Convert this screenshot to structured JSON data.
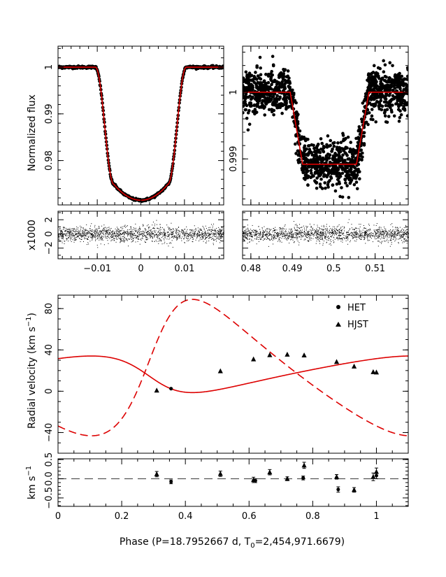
{
  "chart_data": [
    {
      "type": "line+scatter",
      "panel": "primary-transit",
      "ylabel": "Normalized flux",
      "xlim": [
        -0.019,
        0.019
      ],
      "ylim": [
        0.9705,
        1.0045
      ],
      "xticks": [
        -0.01,
        0,
        0.01
      ],
      "yticks": [
        1,
        0.99,
        0.98
      ],
      "ytick_labels": [
        "1",
        "0.99",
        "0.98"
      ],
      "model": {
        "baseline": 1.0,
        "depth": 0.0285,
        "t1": 0.0104,
        "t2": 0.0062,
        "color": "#dd0000"
      },
      "data_points_approx": 420
    },
    {
      "type": "line+scatter",
      "panel": "secondary-eclipse",
      "xlim": [
        0.478,
        0.518
      ],
      "ylim": [
        0.99831,
        1.00069
      ],
      "yticks": [
        1,
        0.999
      ],
      "ytick_labels": [
        "1",
        "0.999"
      ],
      "model": {
        "baseline": 1.0,
        "depth": 0.00108,
        "ingress_start": 0.4895,
        "ingress_end": 0.4925,
        "egress_start": 0.5055,
        "egress_end": 0.5085,
        "color": "#dd0000"
      },
      "data_points_approx": 1400
    },
    {
      "type": "scatter",
      "panel": "primary-residuals",
      "ylabel": "x1000",
      "xlim": [
        -0.019,
        0.019
      ],
      "ylim": [
        -3.5,
        3.2
      ],
      "xticks": [
        -0.01,
        0,
        0.01
      ],
      "xtick_labels": [
        "−0.01",
        "0",
        "0.01"
      ],
      "yticks": [
        2,
        0,
        -2
      ],
      "ytick_labels": [
        "2",
        "0",
        "−2"
      ]
    },
    {
      "type": "scatter",
      "panel": "secondary-residuals",
      "xlim": [
        0.478,
        0.518
      ],
      "ylim": [
        -3.5,
        3.2
      ],
      "xticks": [
        0.48,
        0.49,
        0.5,
        0.51
      ],
      "xtick_labels": [
        "0.48",
        "0.49",
        "0.5",
        "0.51"
      ]
    },
    {
      "type": "line+scatter",
      "panel": "radial-velocity",
      "ylabel": "Radial velocity (km s⁻¹)",
      "xlim": [
        0,
        1.1
      ],
      "ylim": [
        -60,
        93
      ],
      "yticks": [
        80,
        40,
        0,
        -40
      ],
      "ytick_labels": [
        "80",
        "40",
        "0",
        "−40"
      ],
      "legend": [
        {
          "marker": "circle",
          "label": "HET"
        },
        {
          "marker": "triangle",
          "label": "HJST"
        }
      ],
      "model_primary": {
        "gamma": 17.76,
        "K": 17.7,
        "e": 0.3,
        "omega_deg": 105,
        "t_peri_phase": 0.3,
        "color": "#dd0000",
        "style": "solid"
      },
      "model_secondary": {
        "gamma": 17.76,
        "K": 66.0,
        "e": 0.3,
        "omega_deg": 285,
        "t_peri_phase": 0.3,
        "color": "#dd0000",
        "style": "dashed"
      },
      "series": [
        {
          "name": "HET",
          "marker": "circle",
          "x": [
            0.355
          ],
          "y": [
            2.5
          ]
        },
        {
          "name": "HJST",
          "marker": "triangle",
          "x": [
            0.31,
            0.51,
            0.614,
            0.665,
            0.72,
            0.773,
            0.875,
            0.93,
            0.99,
            1.0
          ],
          "y": [
            0.8,
            19.5,
            31.0,
            35.0,
            35.5,
            34.8,
            28.4,
            24.0,
            18.6,
            18.3
          ]
        }
      ]
    },
    {
      "type": "scatter",
      "panel": "rv-residuals",
      "ylabel": "km s⁻¹",
      "xlabel": "Phase (P=18.7952667 d, T₀=2,454,971.6679)",
      "xlim": [
        0,
        1.1
      ],
      "ylim": [
        -0.72,
        0.52
      ],
      "xticks": [
        0,
        0.2,
        0.4,
        0.6,
        0.8,
        1
      ],
      "xtick_labels": [
        "0",
        "0.2",
        "0.4",
        "0.6",
        "0.8",
        "1"
      ],
      "yticks": [
        0.5,
        0,
        -0.5
      ],
      "ytick_labels": [
        "0.5",
        "0.0",
        "−0.5"
      ],
      "zero_line": {
        "y": 0,
        "style": "dashed",
        "color": "#555555"
      },
      "series": [
        {
          "name": "HET",
          "marker": "circle",
          "x": [
            0.355
          ],
          "y": [
            -0.08
          ],
          "err": [
            0.05
          ]
        },
        {
          "name": "HJST",
          "marker": "triangle",
          "x": [
            0.31,
            0.51,
            0.614,
            0.665,
            0.72,
            0.773,
            0.875,
            0.93,
            0.99,
            1.0
          ],
          "y": [
            0.12,
            0.13,
            -0.03,
            0.17,
            0.0,
            0.35,
            0.05,
            -0.29,
            0.05,
            0.18
          ],
          "err": [
            0.07,
            0.07,
            0.07,
            0.07,
            0.05,
            0.08,
            0.06,
            0.06,
            0.1,
            0.1
          ]
        },
        {
          "name": "extra",
          "marker": "circle",
          "x": [
            0.62,
            0.77,
            0.88,
            1.0
          ],
          "y": [
            -0.05,
            0.02,
            -0.28,
            0.08
          ],
          "err": [
            0.05,
            0.05,
            0.07,
            0.08
          ]
        }
      ]
    }
  ],
  "labels": {
    "flux_ylabel": "Normalized flux",
    "resid_ylabel": "x1000",
    "rv_ylabel_main": "Radial velocity (km s",
    "rv_ylabel_sup": "−1",
    "rv_ylabel_close": ")",
    "rvres_ylabel_main": "km s",
    "rvres_ylabel_sup": "−1",
    "xlabel_main": "Phase (P=18.7952667 d, T",
    "xlabel_sub": "0",
    "xlabel_tail": "=2,454,971.6679)",
    "legend_het": "HET",
    "legend_hjst": "HJST"
  }
}
